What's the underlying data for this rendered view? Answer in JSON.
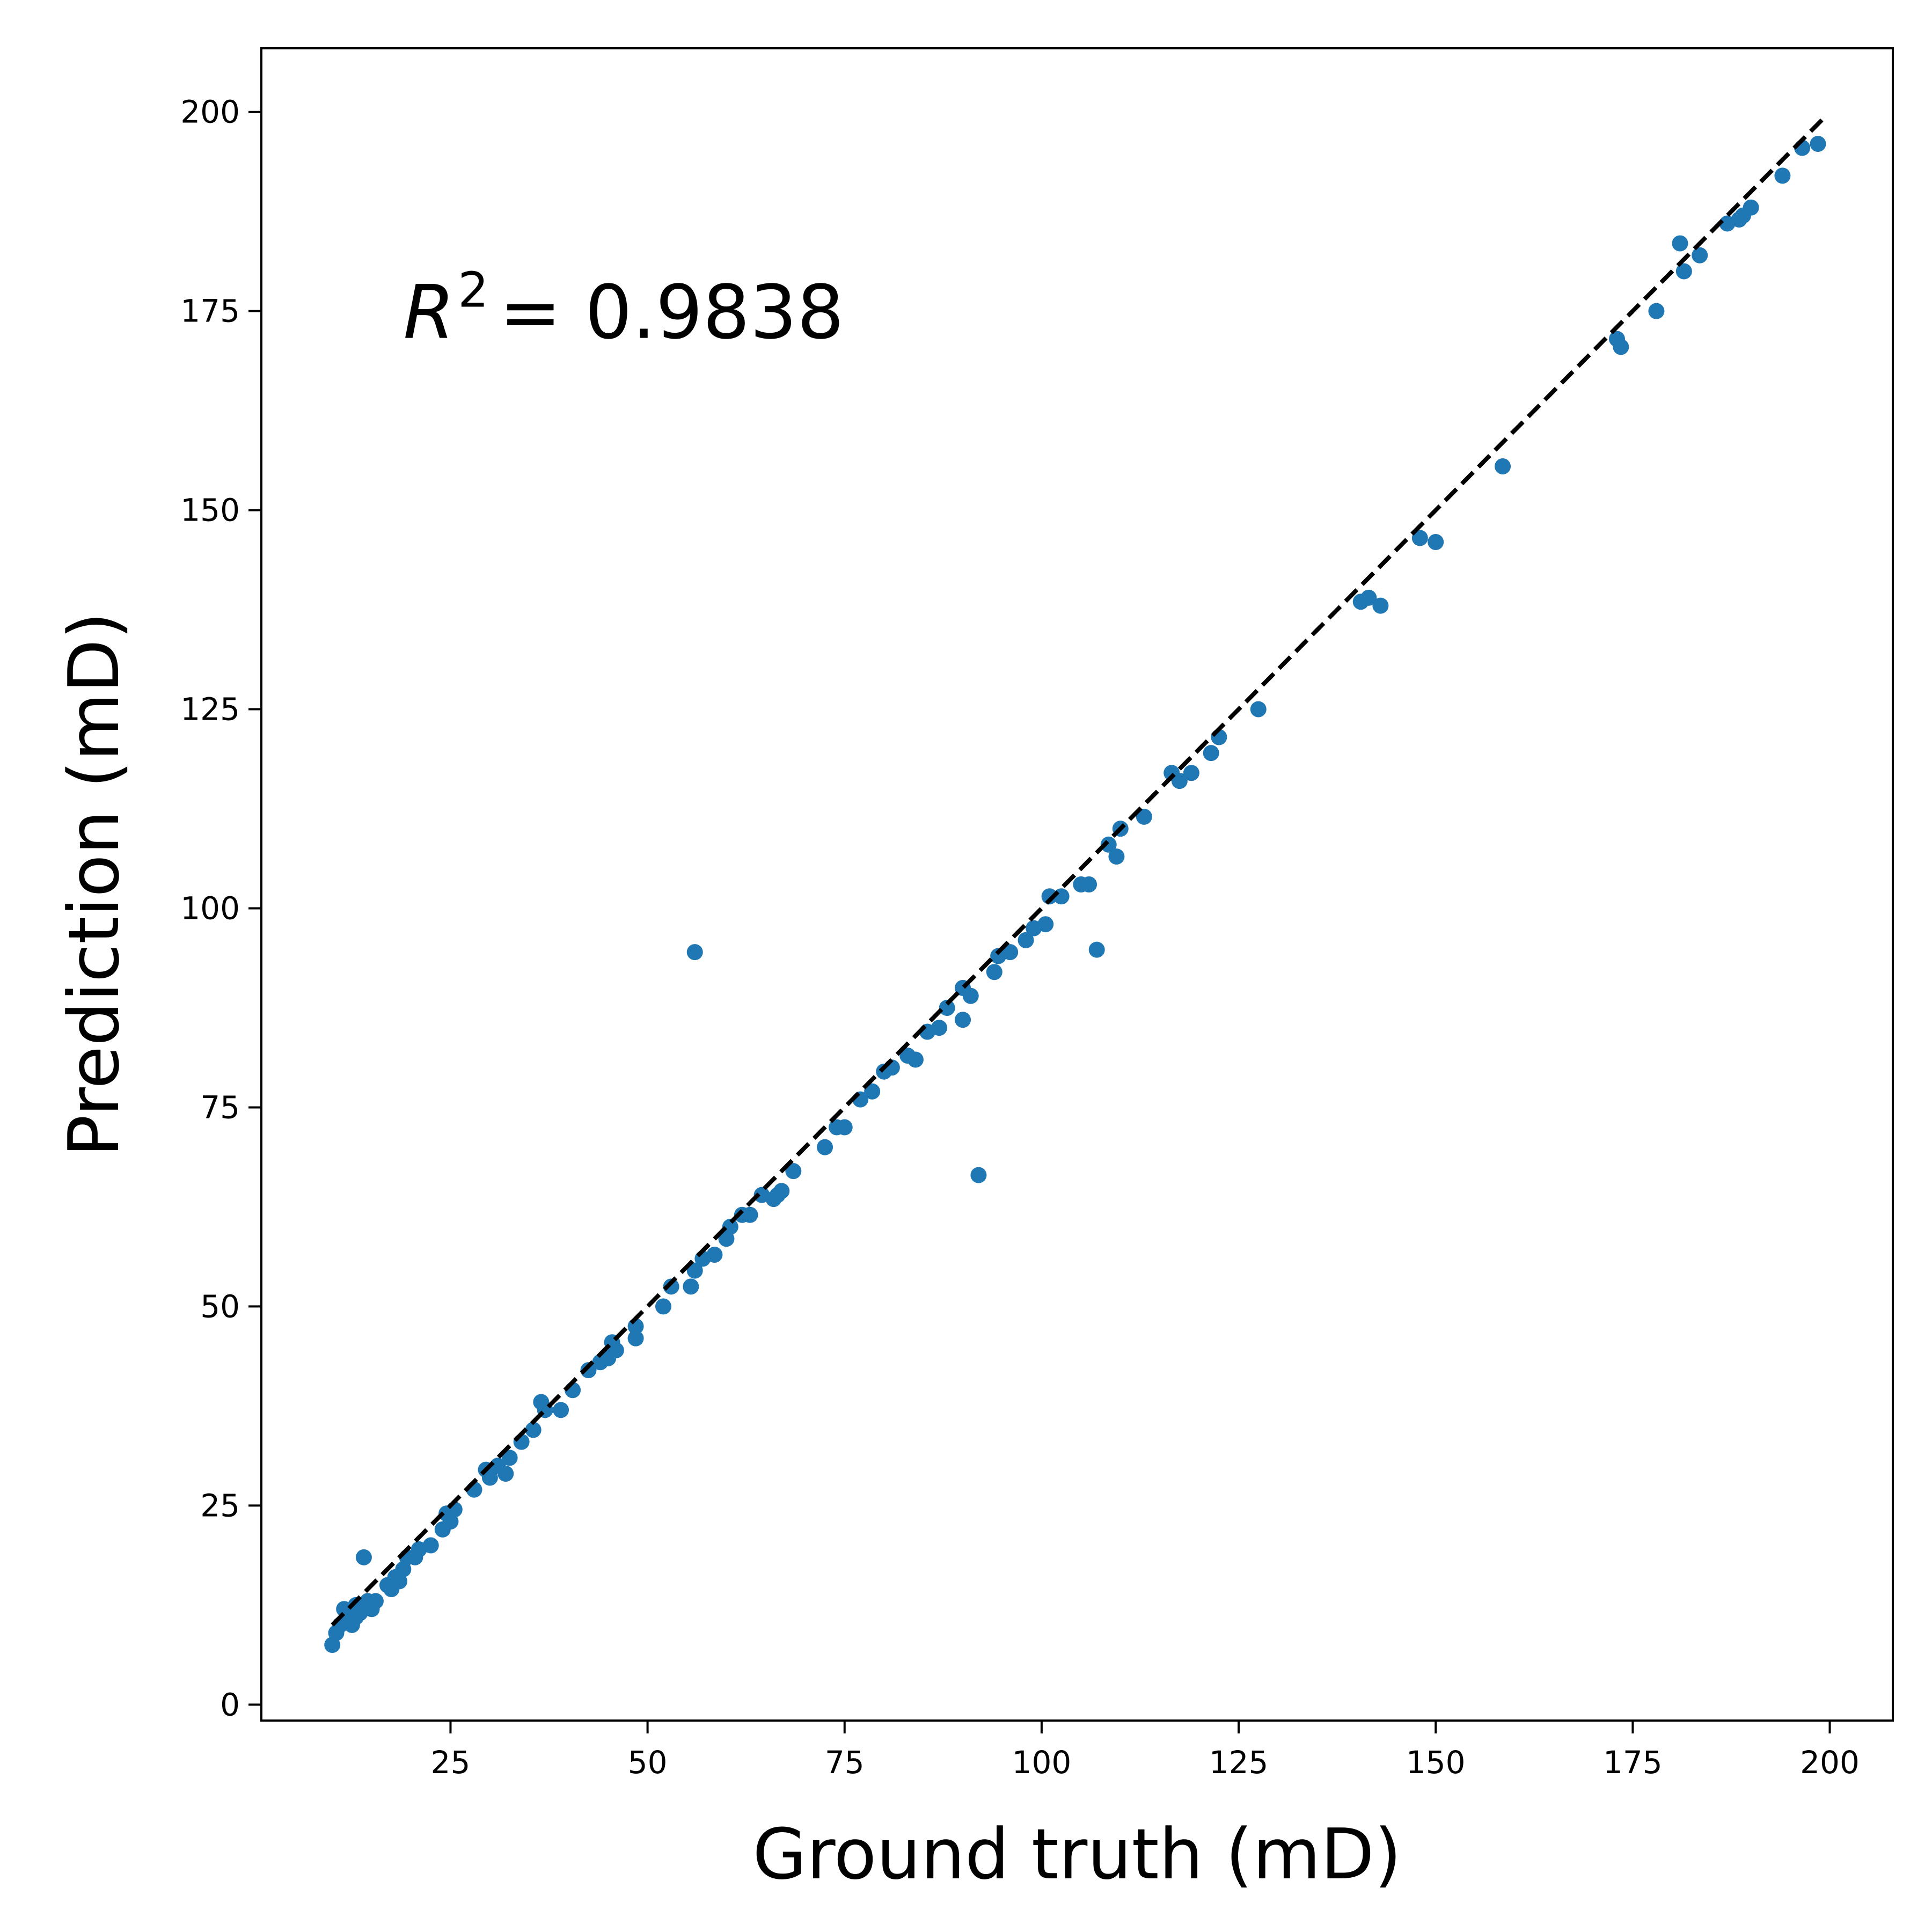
{
  "chart_data": {
    "type": "scatter",
    "xlabel": "Ground truth (mD)",
    "ylabel": "Prediction (mD)",
    "xlim": [
      1,
      208
    ],
    "ylim": [
      -2,
      208
    ],
    "xticks": [
      25,
      50,
      75,
      100,
      125,
      150,
      175,
      200
    ],
    "yticks": [
      0,
      25,
      50,
      75,
      100,
      125,
      150,
      175,
      200
    ],
    "xtick_labels": [
      "25",
      "50",
      "75",
      "100",
      "125",
      "150",
      "175",
      "200"
    ],
    "ytick_labels": [
      "0",
      "25",
      "50",
      "75",
      "100",
      "125",
      "150",
      "175",
      "200"
    ],
    "grid": false,
    "legend": "none",
    "annotation": {
      "symbol": "R",
      "superscript": "2",
      "text": "= 0.9838",
      "x": 19,
      "y": 175
    },
    "reference_line": {
      "style": "dashed",
      "color": "#000000",
      "from": [
        10,
        10
      ],
      "to": [
        199,
        199
      ]
    },
    "point_color": "#1f77b4",
    "points": [
      [
        10.0,
        7.5
      ],
      [
        10.5,
        9.0
      ],
      [
        11.0,
        10.0
      ],
      [
        11.5,
        12.0
      ],
      [
        12.0,
        10.5
      ],
      [
        12.5,
        10.0
      ],
      [
        13.0,
        12.5
      ],
      [
        13.0,
        11.0
      ],
      [
        13.5,
        11.5
      ],
      [
        14.0,
        18.5
      ],
      [
        14.0,
        12.0
      ],
      [
        14.5,
        13.0
      ],
      [
        15.0,
        12.0
      ],
      [
        15.5,
        13.0
      ],
      [
        17.0,
        15.0
      ],
      [
        17.5,
        14.5
      ],
      [
        18.0,
        16.0
      ],
      [
        18.5,
        15.5
      ],
      [
        19.0,
        17.0
      ],
      [
        19.5,
        18.5
      ],
      [
        20.5,
        18.5
      ],
      [
        21.0,
        19.5
      ],
      [
        22.5,
        20.0
      ],
      [
        24.0,
        22.0
      ],
      [
        24.5,
        24.0
      ],
      [
        25.0,
        23.0
      ],
      [
        25.5,
        24.5
      ],
      [
        28.0,
        27.0
      ],
      [
        29.5,
        29.5
      ],
      [
        30.0,
        28.5
      ],
      [
        31.0,
        30.0
      ],
      [
        32.0,
        29.0
      ],
      [
        32.5,
        31.0
      ],
      [
        34.0,
        33.0
      ],
      [
        35.5,
        34.5
      ],
      [
        36.5,
        38.0
      ],
      [
        37.0,
        37.0
      ],
      [
        39.0,
        37.0
      ],
      [
        40.5,
        39.5
      ],
      [
        42.5,
        42.0
      ],
      [
        44.0,
        43.0
      ],
      [
        45.0,
        43.5
      ],
      [
        45.5,
        45.5
      ],
      [
        46.0,
        44.5
      ],
      [
        48.5,
        46.0
      ],
      [
        48.5,
        47.5
      ],
      [
        52.0,
        50.0
      ],
      [
        53.0,
        52.5
      ],
      [
        55.5,
        52.5
      ],
      [
        56.0,
        94.5
      ],
      [
        56.0,
        54.5
      ],
      [
        57.0,
        56.0
      ],
      [
        58.5,
        56.5
      ],
      [
        60.0,
        58.5
      ],
      [
        60.5,
        60.0
      ],
      [
        62.0,
        61.5
      ],
      [
        63.0,
        61.5
      ],
      [
        64.5,
        64.0
      ],
      [
        66.0,
        63.5
      ],
      [
        66.5,
        64.0
      ],
      [
        67.0,
        64.5
      ],
      [
        68.5,
        67.0
      ],
      [
        72.5,
        70.0
      ],
      [
        74.0,
        72.5
      ],
      [
        75.0,
        72.5
      ],
      [
        77.0,
        76.0
      ],
      [
        78.5,
        77.0
      ],
      [
        80.0,
        79.5
      ],
      [
        81.0,
        80.0
      ],
      [
        83.0,
        81.5
      ],
      [
        84.0,
        81.0
      ],
      [
        85.5,
        84.5
      ],
      [
        87.0,
        85.0
      ],
      [
        88.0,
        87.5
      ],
      [
        90.0,
        90.0
      ],
      [
        90.0,
        86.0
      ],
      [
        91.0,
        89.0
      ],
      [
        92.0,
        66.5
      ],
      [
        94.0,
        92.0
      ],
      [
        94.5,
        94.0
      ],
      [
        96.0,
        94.5
      ],
      [
        98.0,
        96.0
      ],
      [
        99.0,
        97.5
      ],
      [
        100.5,
        98.0
      ],
      [
        101.0,
        101.5
      ],
      [
        102.5,
        101.5
      ],
      [
        105.0,
        103.0
      ],
      [
        106.0,
        103.0
      ],
      [
        107.0,
        94.8
      ],
      [
        108.5,
        108.0
      ],
      [
        109.5,
        106.5
      ],
      [
        110.0,
        110.0
      ],
      [
        113.0,
        111.5
      ],
      [
        116.5,
        117.0
      ],
      [
        117.5,
        116.0
      ],
      [
        119.0,
        117.0
      ],
      [
        121.5,
        119.5
      ],
      [
        122.5,
        121.5
      ],
      [
        127.5,
        125.0
      ],
      [
        140.5,
        138.5
      ],
      [
        141.5,
        139.0
      ],
      [
        143.0,
        138.0
      ],
      [
        148.0,
        146.5
      ],
      [
        150.0,
        146.0
      ],
      [
        158.5,
        155.5
      ],
      [
        173.0,
        171.5
      ],
      [
        173.5,
        170.5
      ],
      [
        178.0,
        175.0
      ],
      [
        181.0,
        183.5
      ],
      [
        181.5,
        180.0
      ],
      [
        183.5,
        182.0
      ],
      [
        187.0,
        186.0
      ],
      [
        188.5,
        186.5
      ],
      [
        189.0,
        187.0
      ],
      [
        190.0,
        188.0
      ],
      [
        194.0,
        192.0
      ],
      [
        196.5,
        195.5
      ],
      [
        198.5,
        196.0
      ]
    ]
  }
}
